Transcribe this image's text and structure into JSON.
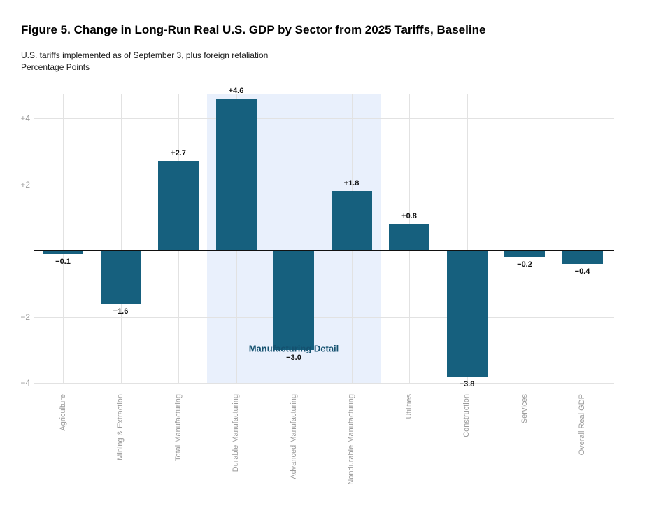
{
  "header": {
    "figure_label": "Figure 5."
  },
  "chart_data": {
    "type": "bar",
    "title": "Figure 5. Change in Long-Run Real U.S. GDP by Sector from 2025 Tariffs, Baseline",
    "subtitle": "U.S. tariffs implemented as of September 3, plus foreign retaliation",
    "ylabel": "Percentage Points",
    "xlabel": "",
    "categories": [
      "Agriculture",
      "Mining & Extraction",
      "Total Manufacturing",
      "Durable Manufacturing",
      "Advanced Manufacturing",
      "Nondurable Manufacturing",
      "Utilities",
      "Construction",
      "Services",
      "Overall Real GDP"
    ],
    "values": [
      -0.1,
      -1.6,
      2.7,
      4.6,
      -3.0,
      1.8,
      0.8,
      -3.8,
      -0.2,
      -0.4
    ],
    "bar_labels": [
      "−0.1",
      "−1.6",
      "+2.7",
      "+4.6",
      "−3.0",
      "+1.8",
      "+0.8",
      "−3.8",
      "−0.2",
      "−0.4"
    ],
    "yticks": [
      {
        "value": 4,
        "label": "+4"
      },
      {
        "value": 2,
        "label": "+2"
      },
      {
        "value": -2,
        "label": "−2"
      },
      {
        "value": -4,
        "label": "−4"
      }
    ],
    "ylim": [
      -4,
      4.7
    ],
    "grid": true,
    "zero_line": true,
    "legend": "none",
    "highlight_region": {
      "label": "Manufacturing Detail",
      "categories": [
        "Durable Manufacturing",
        "Advanced Manufacturing",
        "Nondurable Manufacturing"
      ]
    },
    "colors": {
      "bar": "#16607e",
      "highlight_bg": "#e9f0fc",
      "highlight_label": "#14516f",
      "grid": "#e2e2e2",
      "zero_line": "#111111",
      "axis_text": "#9b9b9b",
      "value_label": "#111111"
    }
  }
}
